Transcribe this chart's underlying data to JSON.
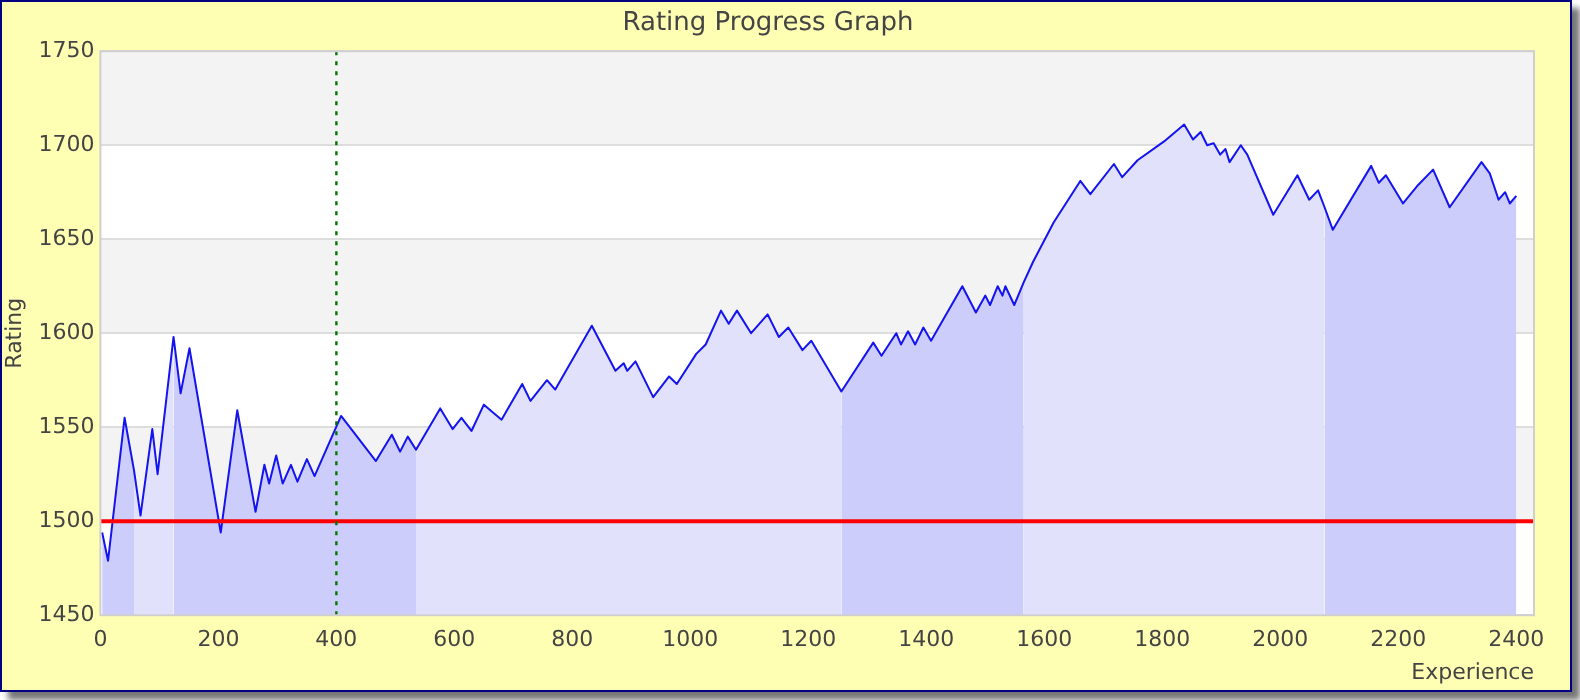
{
  "chart_data": {
    "type": "area",
    "title": "Rating Progress Graph",
    "xlabel": "Experience",
    "ylabel": "Rating",
    "xlim": [
      0,
      2430
    ],
    "xticks": [
      0,
      200,
      400,
      600,
      800,
      1000,
      1200,
      1400,
      1600,
      1800,
      2000,
      2200,
      2400
    ],
    "ylim": [
      1450,
      1750
    ],
    "yticks": [
      1450,
      1500,
      1550,
      1600,
      1650,
      1700,
      1750
    ],
    "grid": "y",
    "legend": false,
    "marker": "none",
    "series": [
      {
        "type": "line",
        "color": "#1414f0",
        "x": [
          3,
          13,
          41,
          57,
          68,
          88,
          97,
          124,
          136,
          151,
          204,
          232,
          263,
          278,
          286,
          298,
          309,
          323,
          334,
          350,
          363,
          408,
          467,
          494,
          508,
          521,
          535,
          576,
          597,
          612,
          629,
          650,
          680,
          715,
          729,
          757,
          771,
          833,
          873,
          887,
          893,
          907,
          937,
          964,
          977,
          1010,
          1026,
          1052,
          1065,
          1079,
          1103,
          1131,
          1150,
          1166,
          1190,
          1205,
          1256,
          1310,
          1324,
          1349,
          1357,
          1369,
          1381,
          1395,
          1408,
          1461,
          1484,
          1500,
          1508,
          1521,
          1529,
          1534,
          1549,
          1565,
          1581,
          1616,
          1661,
          1678,
          1718,
          1732,
          1758,
          1803,
          1837,
          1852,
          1865,
          1876,
          1887,
          1898,
          1907,
          1914,
          1933,
          1944,
          1988,
          2029,
          2049,
          2064,
          2075,
          2089,
          2154,
          2167,
          2179,
          2208,
          2234,
          2259,
          2287,
          2341,
          2355,
          2370,
          2381,
          2389,
          2400
        ],
        "values": [
          1494,
          1479,
          1555,
          1527,
          1503,
          1549,
          1525,
          1598,
          1568,
          1592,
          1494,
          1559,
          1505,
          1530,
          1520,
          1535,
          1520,
          1530,
          1521,
          1533,
          1524,
          1556,
          1532,
          1546,
          1537,
          1545,
          1538,
          1560,
          1549,
          1555,
          1548,
          1562,
          1554,
          1573,
          1564,
          1575,
          1570,
          1604,
          1580,
          1584,
          1580,
          1585,
          1566,
          1577,
          1573,
          1589,
          1594,
          1612,
          1605,
          1612,
          1600,
          1610,
          1598,
          1603,
          1591,
          1596,
          1569,
          1595,
          1588,
          1600,
          1594,
          1601,
          1594,
          1603,
          1596,
          1625,
          1611,
          1620,
          1615,
          1625,
          1620,
          1625,
          1615,
          1627,
          1638,
          1659,
          1681,
          1674,
          1690,
          1683,
          1692,
          1702,
          1711,
          1703,
          1707,
          1700,
          1701,
          1695,
          1698,
          1691,
          1700,
          1695,
          1663,
          1684,
          1671,
          1676,
          1667,
          1655,
          1689,
          1680,
          1684,
          1669,
          1679,
          1687,
          1667,
          1691,
          1685,
          1671,
          1675,
          1669,
          1673
        ]
      },
      {
        "color": "#cdcdfb",
        "x": [
          3,
          13,
          41,
          57
        ],
        "values": [
          1494,
          1479,
          1555,
          1527
        ]
      },
      {
        "color": "#e1e1fc",
        "x": [
          57,
          68,
          88,
          97,
          124
        ],
        "values": [
          1527,
          1503,
          1549,
          1525,
          1598
        ]
      },
      {
        "color": "#cdcdfb",
        "x": [
          124,
          136,
          151,
          204,
          232,
          263,
          278,
          286,
          298,
          309,
          323,
          334,
          350,
          363,
          408,
          467,
          494,
          508,
          521,
          535
        ],
        "values": [
          1598,
          1568,
          1592,
          1494,
          1559,
          1505,
          1530,
          1520,
          1535,
          1520,
          1530,
          1521,
          1533,
          1524,
          1556,
          1532,
          1546,
          1537,
          1545,
          1538
        ]
      },
      {
        "color": "#e1e1fc",
        "x": [
          535,
          576,
          597,
          612,
          629,
          650,
          680,
          715,
          729,
          757,
          771,
          833,
          873,
          887,
          893,
          907,
          937,
          964,
          977,
          1010,
          1026,
          1052,
          1065,
          1079,
          1103,
          1131,
          1150,
          1166,
          1190,
          1205,
          1256
        ],
        "values": [
          1538,
          1560,
          1549,
          1555,
          1548,
          1562,
          1554,
          1573,
          1564,
          1575,
          1570,
          1604,
          1580,
          1584,
          1580,
          1585,
          1566,
          1577,
          1573,
          1589,
          1594,
          1612,
          1605,
          1612,
          1600,
          1610,
          1598,
          1603,
          1591,
          1596,
          1569
        ]
      },
      {
        "color": "#cdcdfb",
        "x": [
          1256,
          1310,
          1324,
          1349,
          1357,
          1369,
          1381,
          1395,
          1408,
          1461,
          1484,
          1500,
          1508,
          1521,
          1529,
          1534,
          1549,
          1565
        ],
        "values": [
          1569,
          1595,
          1588,
          1600,
          1594,
          1601,
          1594,
          1603,
          1596,
          1625,
          1611,
          1620,
          1615,
          1625,
          1620,
          1625,
          1615,
          1627
        ]
      },
      {
        "color": "#e1e1fc",
        "x": [
          1565,
          1581,
          1616,
          1661,
          1678,
          1718,
          1732,
          1758,
          1803,
          1837,
          1852,
          1865,
          1876,
          1887,
          1898,
          1907,
          1914,
          1933,
          1944,
          1988,
          2029,
          2049,
          2064,
          2075
        ],
        "values": [
          1627,
          1638,
          1659,
          1681,
          1674,
          1690,
          1683,
          1692,
          1702,
          1711,
          1703,
          1707,
          1700,
          1701,
          1695,
          1698,
          1691,
          1700,
          1695,
          1663,
          1684,
          1671,
          1676,
          1667
        ]
      },
      {
        "color": "#cdcdfb",
        "x": [
          2075,
          2089,
          2154,
          2167,
          2179,
          2208,
          2234,
          2259,
          2287,
          2341,
          2355,
          2370,
          2381,
          2389,
          2400
        ],
        "values": [
          1667,
          1655,
          1689,
          1680,
          1684,
          1669,
          1679,
          1687,
          1667,
          1691,
          1685,
          1671,
          1675,
          1669,
          1673
        ]
      }
    ],
    "ref_lines": [
      {
        "axis": "y",
        "value": 1500,
        "color": "#ff0000",
        "line_style": "solid"
      },
      {
        "axis": "x",
        "value": 400,
        "color": "#007700",
        "line_style": "dotted"
      }
    ]
  }
}
